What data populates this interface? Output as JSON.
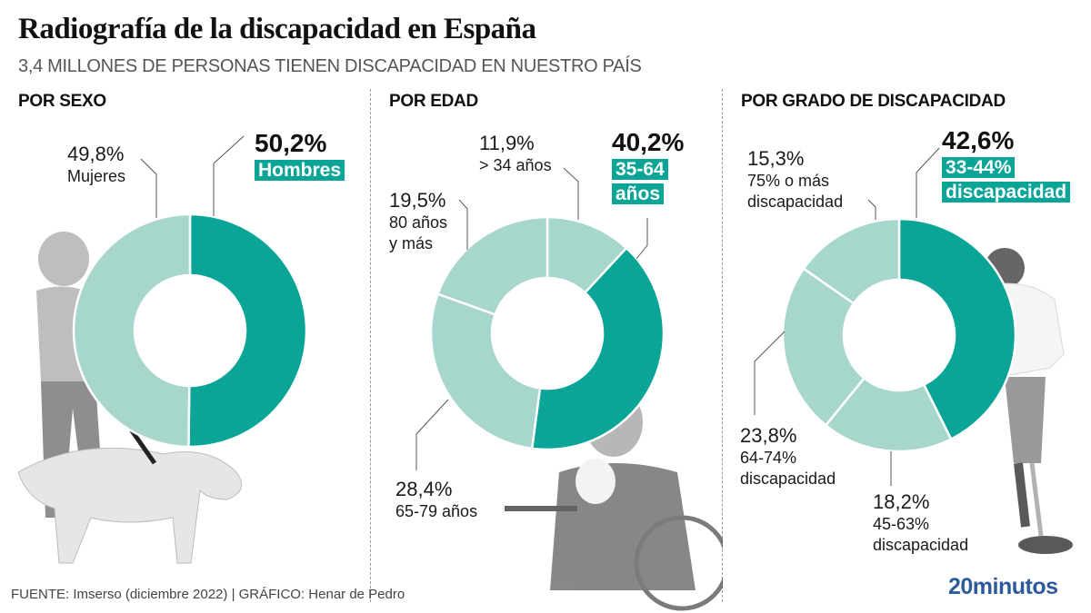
{
  "header": {
    "title": "Radiografía de la discapacidad en España",
    "subtitle": "3,4 MILLONES DE PERSONAS TIENEN DISCAPACIDAD EN NUESTRO PAÍS"
  },
  "colors": {
    "highlight": "#0aa597",
    "light": "#a7d6cc",
    "separator": "#ffffff",
    "logo": "#2d5a9b"
  },
  "chart_data": [
    {
      "type": "pie",
      "variant": "donut",
      "title": "POR SEXO",
      "categories": [
        "Hombres",
        "Mujeres"
      ],
      "values": [
        50.2,
        49.8
      ],
      "labels": [
        "50,2%",
        "49,8%"
      ],
      "highlighted": "Hombres",
      "start": "12 o'clock",
      "direction": "clockwise"
    },
    {
      "type": "pie",
      "variant": "donut",
      "title": "POR EDAD",
      "categories": [
        "> 34 años",
        "35-64 años",
        "65-79 años",
        "80 años y más"
      ],
      "values": [
        11.9,
        40.2,
        28.4,
        19.5
      ],
      "labels": [
        "11,9%",
        "40,2%",
        "28,4%",
        "19,5%"
      ],
      "highlighted": "35-64 años",
      "start": "12 o'clock",
      "direction": "clockwise"
    },
    {
      "type": "pie",
      "variant": "donut",
      "title": "POR GRADO DE DISCAPACIDAD",
      "categories": [
        "33-44% discapacidad",
        "45-63% discapacidad",
        "64-74% discapacidad",
        "75% o más discapacidad"
      ],
      "values": [
        42.6,
        18.2,
        23.8,
        15.3
      ],
      "labels": [
        "42,6%",
        "18,2%",
        "23,8%",
        "15,3%"
      ],
      "highlighted": "33-44% discapacidad",
      "start": "12 o'clock",
      "direction": "clockwise"
    }
  ],
  "labels": {
    "sexo": {
      "hombres": {
        "pct": "50,2%",
        "cat": "Hombres"
      },
      "mujeres": {
        "pct": "49,8%",
        "cat": "Mujeres"
      }
    },
    "edad": {
      "a34": {
        "pct": "11,9%",
        "cat": "> 34 años"
      },
      "a35_64": {
        "pct": "40,2%",
        "cat1": "35-64",
        "cat2": "años"
      },
      "a65_79": {
        "pct": "28,4%",
        "cat": "65-79 años"
      },
      "a80": {
        "pct": "19,5%",
        "cat1": "80 años",
        "cat2": "y más"
      }
    },
    "grado": {
      "g33": {
        "pct": "42,6%",
        "cat1": "33-44%",
        "cat2": "discapacidad"
      },
      "g45": {
        "pct": "18,2%",
        "cat1": "45-63%",
        "cat2": "discapacidad"
      },
      "g64": {
        "pct": "23,8%",
        "cat1": "64-74%",
        "cat2": "discapacidad"
      },
      "g75": {
        "pct": "15,3%",
        "cat1": "75% o más",
        "cat2": "discapacidad"
      }
    }
  },
  "footer": {
    "source": "FUENTE: Imserso (diciembre 2022)  |  GRÁFICO: Henar de Pedro",
    "logo": "20minutos"
  }
}
